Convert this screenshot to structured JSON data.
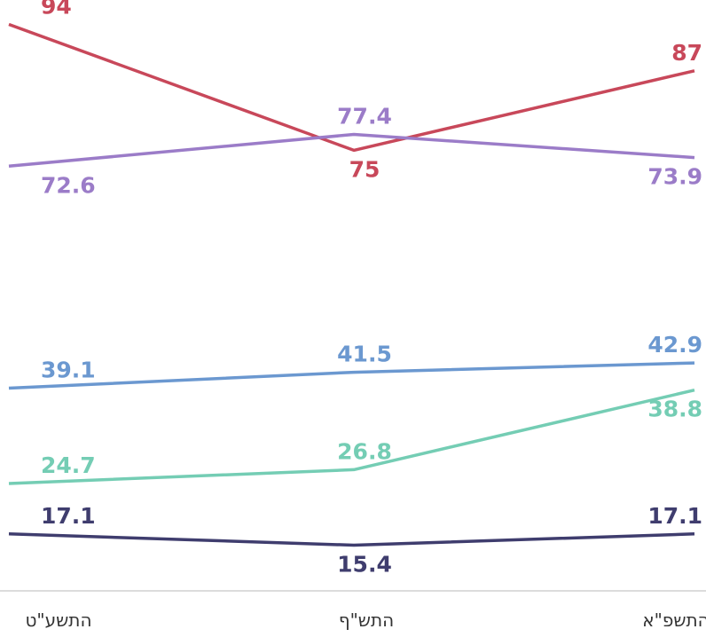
{
  "chart_data": {
    "type": "line",
    "x": [
      "התשע\"ט",
      "התש\"ף",
      "התשפ\"א"
    ],
    "ylim": [
      10,
      98
    ],
    "grid": false,
    "legend": "none",
    "series": [
      {
        "values": [
          94,
          75,
          87
        ],
        "color": "#c8485a",
        "labels": [
          "94",
          "75",
          "87"
        ]
      },
      {
        "values": [
          72.6,
          77.4,
          73.9
        ],
        "color": "#9b7cc8",
        "labels": [
          "72.6",
          "77.4",
          "73.9"
        ]
      },
      {
        "values": [
          39.1,
          41.5,
          42.9
        ],
        "color": "#6b98d0",
        "labels": [
          "39.1",
          "41.5",
          "42.9"
        ]
      },
      {
        "values": [
          24.7,
          26.8,
          38.8
        ],
        "color": "#74cdb4",
        "labels": [
          "24.7",
          "26.8",
          "38.8"
        ]
      },
      {
        "values": [
          17.1,
          15.4,
          17.1
        ],
        "color": "#3f3d6e",
        "labels": [
          "17.1",
          "15.4",
          "17.1"
        ]
      }
    ]
  }
}
